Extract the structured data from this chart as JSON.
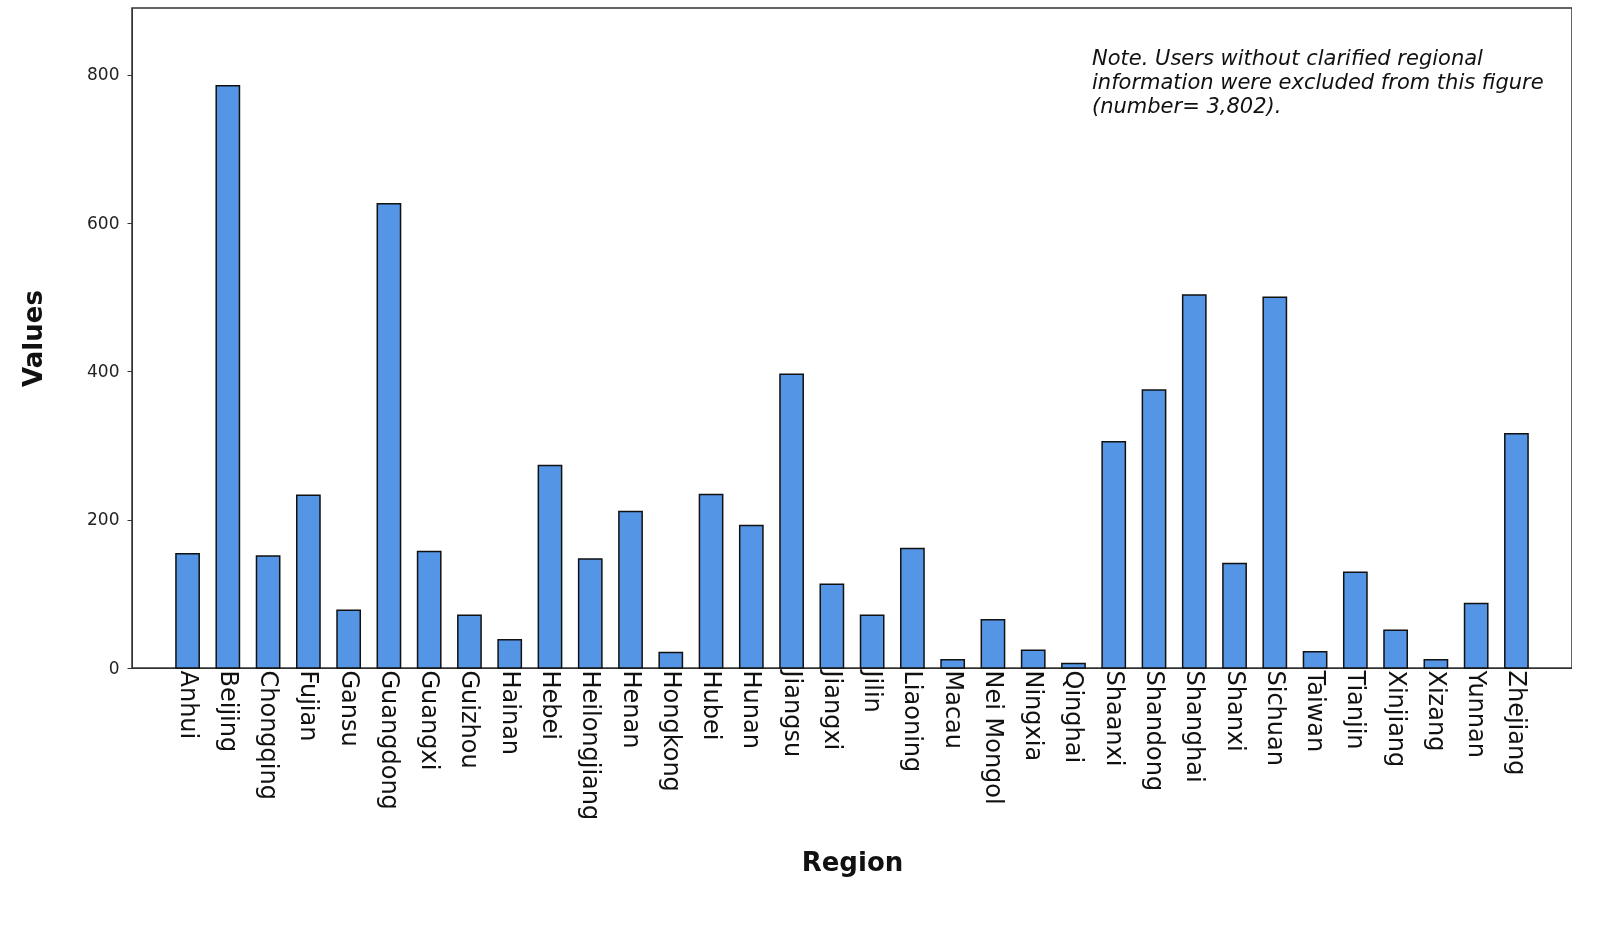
{
  "chart_data": {
    "type": "bar",
    "xlabel": "Region",
    "ylabel": "Values",
    "categories": [
      "Anhui",
      "Beijing",
      "Chongqing",
      "Fujian",
      "Gansu",
      "Guangdong",
      "Guangxi",
      "Guizhou",
      "Hainan",
      "Hebei",
      "Heilongjiang",
      "Henan",
      "Hongkong",
      "Hubei",
      "Hunan",
      "Jiangsu",
      "Jiangxi",
      "Jilin",
      "Liaoning",
      "Macau",
      "Nei Mongol",
      "Ningxia",
      "Qinghai",
      "Shaanxi",
      "Shandong",
      "Shanghai",
      "Shanxi",
      "Sichuan",
      "Taiwan",
      "Tianjin",
      "Xinjiang",
      "Xizang",
      "Yunnan",
      "Zhejiang"
    ],
    "values": [
      154,
      785,
      151,
      233,
      78,
      626,
      157,
      71,
      38,
      273,
      147,
      211,
      21,
      234,
      192,
      396,
      113,
      71,
      161,
      11,
      65,
      24,
      6,
      305,
      375,
      503,
      141,
      500,
      22,
      129,
      51,
      11,
      87,
      316
    ],
    "color": "#5595e5",
    "ylim": [
      0,
      890
    ],
    "yticks": [
      0,
      200,
      400,
      600,
      800
    ],
    "grid": false,
    "annotations": [
      "Note. Users without clarified regional information were excluded from this figure (number= 3,802)."
    ]
  }
}
